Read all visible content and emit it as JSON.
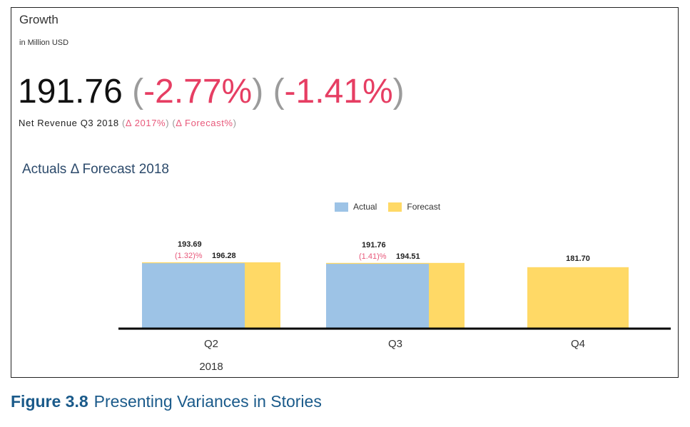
{
  "tile": {
    "title": "Growth",
    "subtitle": "in Million USD"
  },
  "kpi": {
    "value": "191.76",
    "delta_prior": "-2.77%",
    "delta_forecast": "-1.41%",
    "label": "Net Revenue Q3 2018",
    "label_delta_prior": "Δ 2017%",
    "label_delta_forecast": "Δ Forecast%"
  },
  "caption": {
    "number": "Figure 3.8",
    "text": "Presenting Variances in Stories"
  },
  "colors": {
    "actual": "#9dc3e6",
    "forecast": "#ffd966",
    "variance": "#e8587a"
  },
  "chart_data": {
    "type": "bar",
    "title": "Actuals Δ Forecast 2018",
    "categories": [
      "Q2",
      "Q3",
      "Q4"
    ],
    "group_label": "2018",
    "series": [
      {
        "name": "Actual",
        "values": [
          193.69,
          191.76,
          null
        ]
      },
      {
        "name": "Forecast",
        "values": [
          196.28,
          194.51,
          181.7
        ]
      }
    ],
    "variance_labels": [
      "(1.32)%",
      "(1.41)%",
      null
    ],
    "value_labels": {
      "actual": [
        "193.69",
        "191.76",
        ""
      ],
      "forecast": [
        "196.28",
        "194.51",
        "181.70"
      ]
    },
    "legend_position": "top-center",
    "grid": false
  }
}
